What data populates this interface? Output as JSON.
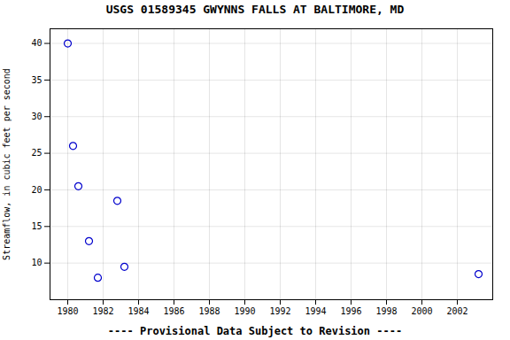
{
  "chart_data": {
    "type": "scatter",
    "title": "USGS 01589345 GWYNNS FALLS AT BALTIMORE, MD",
    "xlabel": "---- Provisional Data Subject to Revision ----",
    "ylabel": "Streamflow, in cubic feet per second",
    "x": [
      1980.0,
      1980.3,
      1980.6,
      1981.2,
      1981.7,
      1982.8,
      1983.2,
      2003.2
    ],
    "values": [
      40,
      26,
      20.5,
      13,
      8,
      18.5,
      9.5,
      8.5
    ],
    "color": "#0000cc",
    "marker": "circle",
    "xlim": [
      1979,
      2004
    ],
    "ylim": [
      5,
      42
    ],
    "xticks": [
      1980,
      1982,
      1984,
      1986,
      1988,
      1990,
      1992,
      1994,
      1996,
      1998,
      2000,
      2002
    ],
    "yticks": [
      10,
      15,
      20,
      25,
      30,
      35,
      40
    ],
    "grid": true
  }
}
